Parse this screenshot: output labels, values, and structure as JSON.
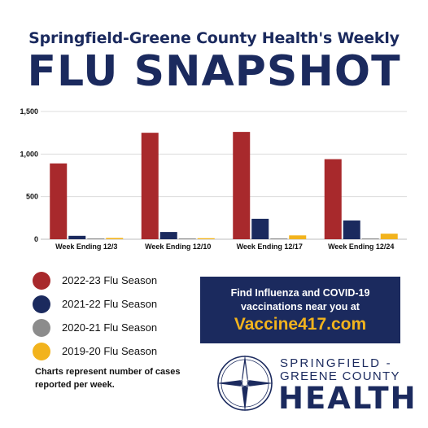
{
  "header": {
    "line1": "Springfield-Greene County Health's Weekly",
    "line2": "FLU SNAPSHOT"
  },
  "chart_data": {
    "type": "bar",
    "categories": [
      "Week Ending 12/3",
      "Week Ending 12/10",
      "Week Ending 12/17",
      "Week Ending 12/24"
    ],
    "series": [
      {
        "name": "2022-23 Flu Season",
        "color": "#a8292c",
        "values": [
          890,
          1250,
          1260,
          940
        ]
      },
      {
        "name": "2021-22 Flu Season",
        "color": "#1b2a5e",
        "values": [
          40,
          85,
          240,
          220
        ]
      },
      {
        "name": "2020-21 Flu Season",
        "color": "#8c8c8c",
        "values": [
          2,
          2,
          2,
          2
        ]
      },
      {
        "name": "2019-20 Flu Season",
        "color": "#f2b31d",
        "values": [
          15,
          12,
          45,
          65
        ]
      }
    ],
    "yticks": [
      0,
      500,
      1000,
      1500
    ],
    "ytick_labels": [
      "0",
      "500",
      "1,000",
      "1,500"
    ],
    "ylim": [
      0,
      1500
    ],
    "grid": true,
    "legend_position": "bottom-left"
  },
  "note": "Charts represent number of cases reported per week.",
  "vaccine_box": {
    "line1": "Find Influenza and COVID-19",
    "line2": "vaccinations near you at",
    "link": "Vaccine417.com"
  },
  "logo": {
    "line1": "SPRINGFIELD -",
    "line2": "GREENE COUNTY",
    "line3": "HEALTH",
    "icon": "compass-star-icon"
  }
}
